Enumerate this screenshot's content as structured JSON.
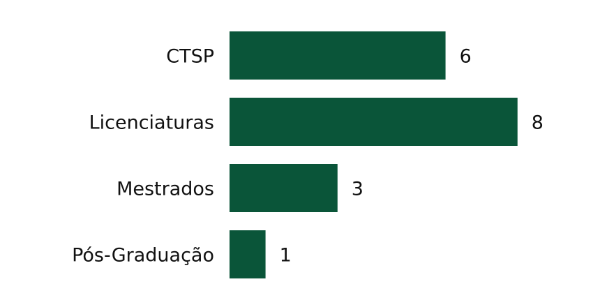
{
  "chart_data": {
    "type": "bar",
    "orientation": "horizontal",
    "categories": [
      "CTSP",
      "Licenciaturas",
      "Mestrados",
      "Pós-Graduação"
    ],
    "values": [
      6,
      8,
      3,
      1
    ],
    "bar_color": "#0a5539",
    "grid": false,
    "legend": "none"
  }
}
